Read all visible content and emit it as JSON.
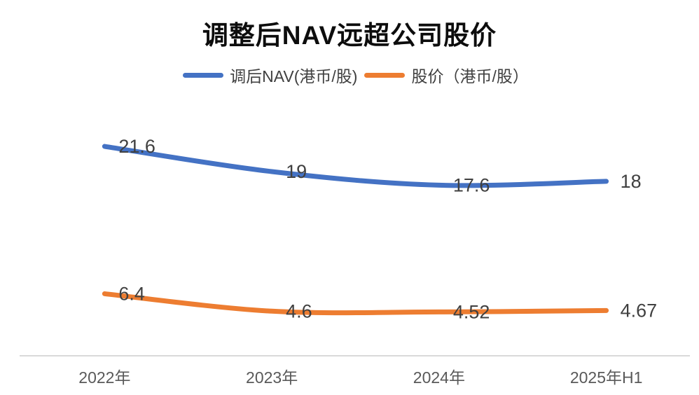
{
  "chart_data": {
    "type": "line",
    "title": "调整后NAV远超公司股价",
    "categories": [
      "2022年",
      "2023年",
      "2024年",
      "2025年H1"
    ],
    "series": [
      {
        "name": "调后NAV(港币/股)",
        "key": "nav",
        "values": [
          21.6,
          19,
          17.6,
          18
        ],
        "labels": [
          "21.6",
          "19",
          "17.6",
          "18"
        ],
        "color": "#4472C4"
      },
      {
        "name": "股价（港币/股）",
        "key": "price",
        "values": [
          6.4,
          4.6,
          4.52,
          4.67
        ],
        "labels": [
          "6.4",
          "4.6",
          "4.52",
          "4.67"
        ],
        "color": "#ED7D31"
      }
    ],
    "xlabel": "",
    "ylabel": "",
    "ylim": [
      0,
      25
    ],
    "grid": false,
    "legend_position": "top",
    "smooth": true,
    "data_labels_position": "right"
  },
  "colors": {
    "title": "#0d0d0d",
    "axis_line": "#D9D9D9",
    "data_label": "#404040",
    "tick_label": "#595959",
    "background": "#FFFFFF"
  }
}
